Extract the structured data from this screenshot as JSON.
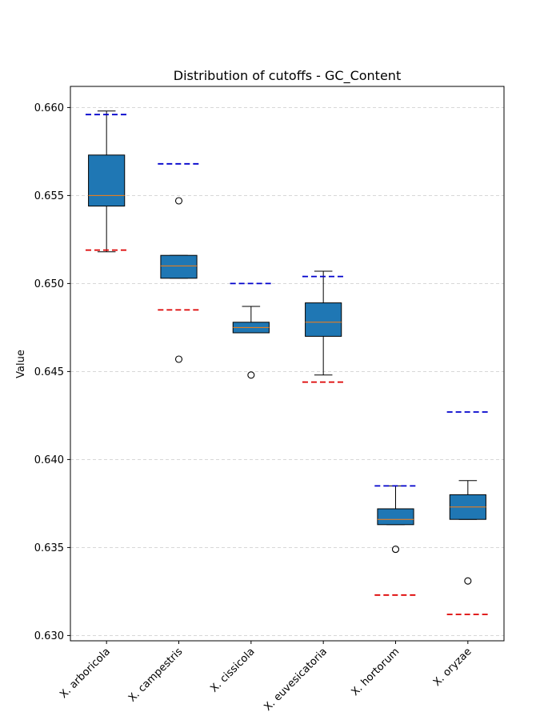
{
  "chart_data": {
    "type": "box",
    "title": "Distribution of cutoffs - GC_Content",
    "xlabel": "",
    "ylabel": "Value",
    "ylim": [
      0.6297,
      0.6612
    ],
    "yticks": [
      0.63,
      0.635,
      0.64,
      0.645,
      0.65,
      0.655,
      0.66
    ],
    "ytick_labels": [
      "0.630",
      "0.635",
      "0.640",
      "0.645",
      "0.650",
      "0.655",
      "0.660"
    ],
    "grid": "horizontal dashed",
    "box_color": "#1f77b4",
    "median_color": "#ff7f0e",
    "upper_cutoff_color": "#0000cc",
    "lower_cutoff_color": "#dd0000",
    "categories": [
      "X. arboricola",
      "X. campestris",
      "X. cissicola",
      "X. euvesicatoria",
      "X. hortorum",
      "X. oryzae"
    ],
    "boxes": [
      {
        "whisker_low": 0.6518,
        "q1": 0.6544,
        "median": 0.655,
        "q3": 0.6573,
        "whisker_high": 0.6598,
        "outliers": [],
        "upper_cutoff": 0.6596,
        "lower_cutoff": 0.6519
      },
      {
        "whisker_low": 0.6503,
        "q1": 0.6503,
        "median": 0.651,
        "q3": 0.6516,
        "whisker_high": 0.6516,
        "outliers": [
          0.6547,
          0.6457
        ],
        "upper_cutoff": 0.6568,
        "lower_cutoff": 0.6485
      },
      {
        "whisker_low": 0.6472,
        "q1": 0.6472,
        "median": 0.6475,
        "q3": 0.6478,
        "whisker_high": 0.6487,
        "outliers": [
          0.6448
        ],
        "upper_cutoff": 0.65,
        "lower_cutoff": null
      },
      {
        "whisker_low": 0.6448,
        "q1": 0.647,
        "median": 0.6478,
        "q3": 0.6489,
        "whisker_high": 0.6507,
        "outliers": [],
        "upper_cutoff": 0.6504,
        "lower_cutoff": 0.6444
      },
      {
        "whisker_low": 0.6363,
        "q1": 0.6363,
        "median": 0.6366,
        "q3": 0.6372,
        "whisker_high": 0.6385,
        "outliers": [
          0.6349
        ],
        "upper_cutoff": 0.6385,
        "lower_cutoff": 0.6323
      },
      {
        "whisker_low": 0.6366,
        "q1": 0.6366,
        "median": 0.6373,
        "q3": 0.638,
        "whisker_high": 0.6388,
        "outliers": [
          0.6331
        ],
        "upper_cutoff": 0.6427,
        "lower_cutoff": 0.6312
      }
    ]
  }
}
